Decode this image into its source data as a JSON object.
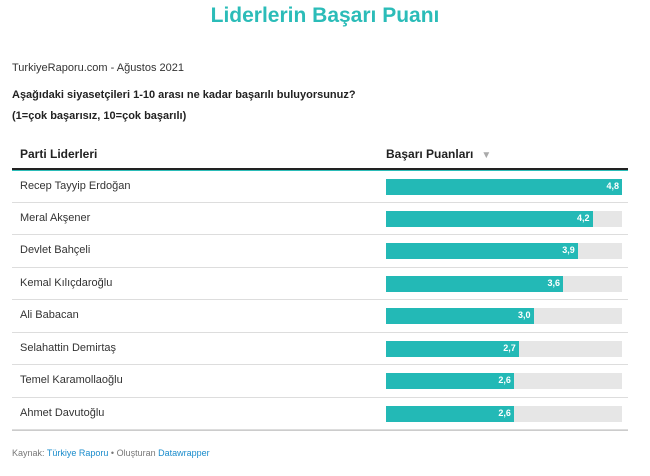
{
  "title": "Liderlerin Başarı Puanı",
  "source_line": "TurkiyeRaporu.com - Ağustos 2021",
  "question_line1": "Aşağıdaki siyasetçileri 1-10 arası ne kadar başarılı buluyorsunuz?",
  "question_line2": "(1=çok başarısız, 10=çok başarılı)",
  "table": {
    "col_name": "Parti Liderleri",
    "col_score": "Başarı Puanları",
    "sort_icon": "▼"
  },
  "footer": {
    "source_label": "Kaynak:",
    "source_link": "Türkiye Raporu",
    "separator": "•",
    "created_label": "Oluşturan",
    "created_link": "Datawrapper"
  },
  "colors": {
    "accent": "#2bbcb8",
    "bar": "#23b9b6",
    "bar_bg": "#e6e6e6"
  },
  "chart_data": {
    "type": "bar",
    "orientation": "horizontal",
    "categories": [
      "Recep Tayyip Erdoğan",
      "Meral Akşener",
      "Devlet Bahçeli",
      "Kemal Kılıçdaroğlu",
      "Ali Babacan",
      "Selahattin Demirtaş",
      "Temel Karamollaoğlu",
      "Ahmet Davutoğlu"
    ],
    "values": [
      4.8,
      4.2,
      3.9,
      3.6,
      3.0,
      2.7,
      2.6,
      2.6
    ],
    "value_labels": [
      "4,8",
      "4,2",
      "3,9",
      "3,6",
      "3,0",
      "2,7",
      "2,6",
      "2,6"
    ],
    "xlim": [
      0,
      4.8
    ],
    "title": "Liderlerin Başarı Puanı"
  }
}
